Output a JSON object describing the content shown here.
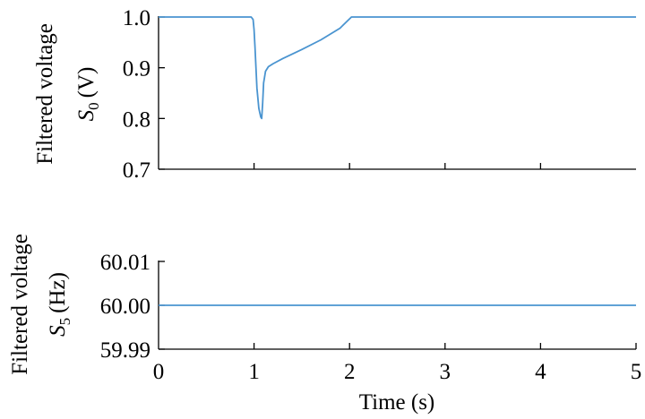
{
  "chart_data": [
    {
      "type": "line",
      "ylabel": "Filtered voltage",
      "ylabel_symbol": "S",
      "ylabel_subscript": "0",
      "ylabel_unit": "(V)",
      "xlim": [
        0,
        5
      ],
      "ylim": [
        0.7,
        1.0
      ],
      "yticks": [
        0.7,
        0.8,
        0.9,
        1.0
      ],
      "ytick_labels": [
        "0.7",
        "0.8",
        "0.9",
        "1.0"
      ],
      "grid": false,
      "series": [
        {
          "color": "#4a94d0",
          "x": [
            0,
            0.97,
            0.99,
            1.0,
            1.01,
            1.02,
            1.03,
            1.05,
            1.07,
            1.08,
            1.09,
            1.1,
            1.12,
            1.15,
            1.2,
            1.3,
            1.5,
            1.7,
            1.9,
            2.02,
            2.5,
            3.0,
            4.0,
            5.0
          ],
          "y": [
            1.0,
            1.0,
            0.995,
            0.975,
            0.94,
            0.9,
            0.86,
            0.82,
            0.803,
            0.8,
            0.83,
            0.87,
            0.893,
            0.902,
            0.908,
            0.918,
            0.936,
            0.955,
            0.978,
            1.0,
            1.0,
            1.0,
            1.0,
            1.0
          ]
        }
      ]
    },
    {
      "type": "line",
      "ylabel": "Filtered voltage",
      "ylabel_symbol": "S",
      "ylabel_subscript": "5",
      "ylabel_unit": "(Hz)",
      "xlabel": "Time (s)",
      "xlim": [
        0,
        5
      ],
      "ylim": [
        59.99,
        60.01
      ],
      "xticks": [
        0,
        1,
        2,
        3,
        4,
        5
      ],
      "xtick_labels": [
        "0",
        "1",
        "2",
        "3",
        "4",
        "5"
      ],
      "yticks": [
        59.99,
        60.0,
        60.01
      ],
      "ytick_labels": [
        "59.99",
        "60.00",
        "60.01"
      ],
      "grid": false,
      "series": [
        {
          "color": "#4a94d0",
          "x": [
            0,
            1,
            2,
            3,
            4,
            5
          ],
          "y": [
            60.0,
            60.0,
            60.0,
            60.0,
            60.0,
            60.0
          ]
        }
      ]
    }
  ]
}
